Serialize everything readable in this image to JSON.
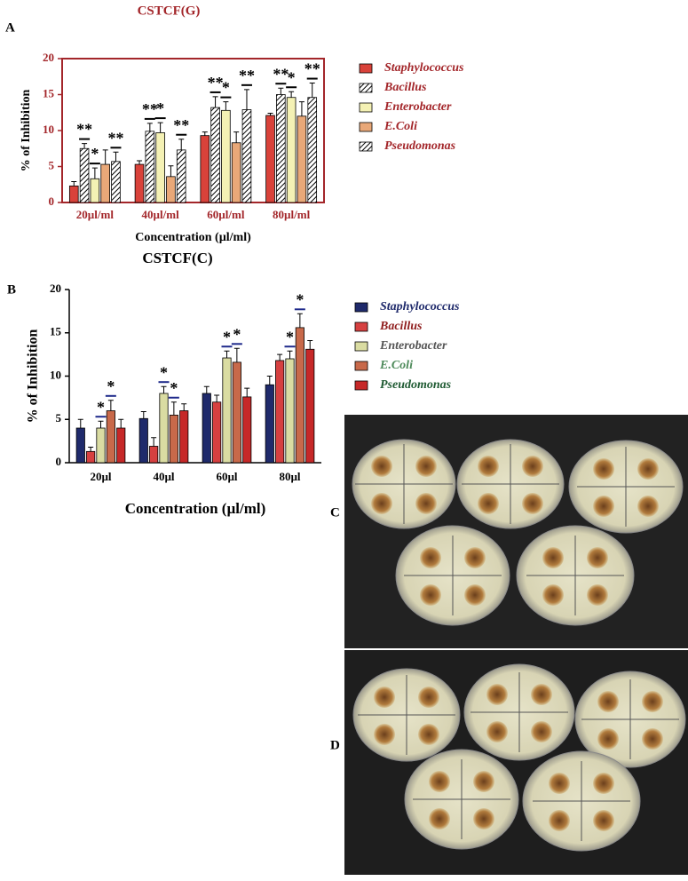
{
  "chart_data": [
    {
      "type": "bar",
      "panel": "A",
      "title": "CSTCF(G)",
      "y_label": "% of Inhibition",
      "x_label": "Concentration (µl/ml)",
      "categories": [
        "20µl/ml",
        "40µl/ml",
        "60µl/ml",
        "80µl/ml"
      ],
      "ylim": [
        0,
        20
      ],
      "yticks": [
        0,
        5,
        10,
        15,
        20
      ],
      "axis_color": "#a3262a",
      "frame": true,
      "series": [
        {
          "name": "Staphylococcus",
          "color": "#d9423a",
          "label_color": "#a3262a",
          "hatch": false,
          "values": [
            2.3,
            5.3,
            9.3,
            12.1
          ],
          "errors": [
            0.6,
            0.5,
            0.5,
            0.3
          ],
          "significance": [
            null,
            null,
            null,
            null
          ]
        },
        {
          "name": "Bacillus",
          "color": "#c9aa84",
          "label_color": "#a3262a",
          "hatch": true,
          "values": [
            7.5,
            9.9,
            13.2,
            15.0
          ],
          "errors": [
            0.7,
            1.1,
            1.5,
            0.9
          ],
          "significance": [
            "**",
            "**",
            "**",
            "**"
          ]
        },
        {
          "name": "Enterobacter",
          "color": "#f4f1b4",
          "label_color": "#a3262a",
          "hatch": false,
          "values": [
            3.3,
            9.7,
            12.8,
            14.6
          ],
          "errors": [
            1.5,
            1.4,
            1.2,
            0.8
          ],
          "significance": [
            "*",
            "*",
            "*",
            "*"
          ]
        },
        {
          "name": "E.Coli",
          "color": "#e9a878",
          "label_color": "#a3262a",
          "hatch": false,
          "values": [
            5.3,
            3.6,
            8.3,
            12.0
          ],
          "errors": [
            2.0,
            1.5,
            1.5,
            2.0
          ],
          "significance": [
            null,
            null,
            null,
            null
          ]
        },
        {
          "name": "Pseudomonas",
          "color": "#3a3a3a",
          "label_color": "#a3262a",
          "hatch": true,
          "values": [
            5.7,
            7.3,
            12.9,
            14.6
          ],
          "errors": [
            1.3,
            1.5,
            2.8,
            2.0
          ],
          "significance": [
            "**",
            "**",
            "**",
            "**"
          ]
        }
      ]
    },
    {
      "type": "bar",
      "panel": "B",
      "title": "CSTCF(C)",
      "y_label": "% of Inhibition",
      "x_label": "Concentration (µl/ml)",
      "categories": [
        "20µl",
        "40µl",
        "60µl",
        "80µl"
      ],
      "ylim": [
        0,
        20
      ],
      "yticks": [
        0,
        5,
        10,
        15,
        20
      ],
      "axis_color": "#000000",
      "frame": false,
      "series": [
        {
          "name": "Staphylococcus",
          "color": "#1f2a6b",
          "label_color": "#1f2a6b",
          "hatch": false,
          "values": [
            4.0,
            5.1,
            8.0,
            9.0
          ],
          "errors": [
            1.0,
            0.8,
            0.8,
            1.0
          ],
          "significance": [
            null,
            null,
            null,
            null
          ]
        },
        {
          "name": "Bacillus",
          "color": "#d64040",
          "label_color": "#8f1d1d",
          "hatch": false,
          "values": [
            1.3,
            1.9,
            7.0,
            11.8
          ],
          "errors": [
            0.5,
            1.0,
            0.8,
            0.7
          ],
          "significance": [
            null,
            null,
            null,
            null
          ]
        },
        {
          "name": "Enterobacter",
          "color": "#dadca2",
          "label_color": "#555555",
          "hatch": false,
          "values": [
            4.0,
            8.0,
            12.1,
            12.0
          ],
          "errors": [
            0.8,
            0.8,
            0.8,
            0.9
          ],
          "significance": [
            "*",
            "*",
            "*",
            "*"
          ]
        },
        {
          "name": "E.Coli",
          "color": "#c8694a",
          "label_color": "#4d8a5a",
          "hatch": false,
          "values": [
            6.0,
            5.5,
            11.6,
            15.6
          ],
          "errors": [
            1.2,
            1.5,
            1.6,
            1.6
          ],
          "significance": [
            "*",
            "*",
            "*",
            "*"
          ]
        },
        {
          "name": "Pseudomonas",
          "color": "#c62828",
          "label_color": "#1e5a32",
          "hatch": false,
          "values": [
            4.0,
            6.0,
            7.6,
            13.1
          ],
          "errors": [
            1.0,
            0.8,
            1.0,
            1.0
          ],
          "significance": [
            null,
            null,
            null,
            null
          ]
        }
      ]
    }
  ],
  "photos": [
    {
      "label": "C"
    },
    {
      "label": "D"
    }
  ]
}
